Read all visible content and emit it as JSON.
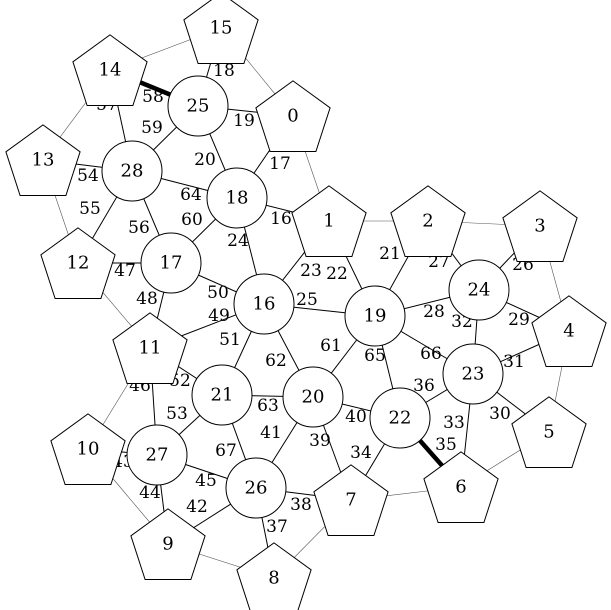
{
  "nodes": [
    {
      "id": "0",
      "label": "0",
      "shape": "pentagon"
    },
    {
      "id": "1",
      "label": "1",
      "shape": "pentagon"
    },
    {
      "id": "2",
      "label": "2",
      "shape": "pentagon"
    },
    {
      "id": "3",
      "label": "3",
      "shape": "pentagon"
    },
    {
      "id": "4",
      "label": "4",
      "shape": "pentagon"
    },
    {
      "id": "5",
      "label": "5",
      "shape": "pentagon"
    },
    {
      "id": "6",
      "label": "6",
      "shape": "pentagon"
    },
    {
      "id": "7",
      "label": "7",
      "shape": "pentagon"
    },
    {
      "id": "8",
      "label": "8",
      "shape": "pentagon"
    },
    {
      "id": "9",
      "label": "9",
      "shape": "pentagon"
    },
    {
      "id": "10",
      "label": "10",
      "shape": "pentagon"
    },
    {
      "id": "11",
      "label": "11",
      "shape": "pentagon"
    },
    {
      "id": "12",
      "label": "12",
      "shape": "pentagon"
    },
    {
      "id": "13",
      "label": "13",
      "shape": "pentagon"
    },
    {
      "id": "14",
      "label": "14",
      "shape": "pentagon"
    },
    {
      "id": "15",
      "label": "15",
      "shape": "pentagon"
    },
    {
      "id": "16",
      "label": "16",
      "shape": "circle"
    },
    {
      "id": "17",
      "label": "17",
      "shape": "circle"
    },
    {
      "id": "18",
      "label": "18",
      "shape": "circle"
    },
    {
      "id": "19",
      "label": "19",
      "shape": "circle"
    },
    {
      "id": "20",
      "label": "20",
      "shape": "circle"
    },
    {
      "id": "21",
      "label": "21",
      "shape": "circle"
    },
    {
      "id": "22",
      "label": "22",
      "shape": "circle"
    },
    {
      "id": "23",
      "label": "23",
      "shape": "circle"
    },
    {
      "id": "24",
      "label": "24",
      "shape": "circle"
    },
    {
      "id": "25",
      "label": "25",
      "shape": "circle"
    },
    {
      "id": "26",
      "label": "26",
      "shape": "circle"
    },
    {
      "id": "27",
      "label": "27",
      "shape": "circle"
    },
    {
      "id": "28",
      "label": "28",
      "shape": "circle"
    }
  ],
  "edges": [
    {
      "from": "25",
      "to": "0",
      "label": "19",
      "style": "normal"
    },
    {
      "from": "18",
      "to": "0",
      "label": "17",
      "style": "normal"
    },
    {
      "from": "18",
      "to": "1",
      "label": "16",
      "style": "normal"
    },
    {
      "from": "16",
      "to": "1",
      "label": "23",
      "style": "normal"
    },
    {
      "from": "19",
      "to": "1",
      "label": "22",
      "style": "normal"
    },
    {
      "from": "19",
      "to": "2",
      "label": "21",
      "style": "normal"
    },
    {
      "from": "24",
      "to": "2",
      "label": "27",
      "style": "normal"
    },
    {
      "from": "24",
      "to": "3",
      "label": "26",
      "style": "normal"
    },
    {
      "from": "24",
      "to": "4",
      "label": "29",
      "style": "normal"
    },
    {
      "from": "23",
      "to": "4",
      "label": "31",
      "style": "normal"
    },
    {
      "from": "23",
      "to": "5",
      "label": "30",
      "style": "normal"
    },
    {
      "from": "23",
      "to": "6",
      "label": "33",
      "style": "normal"
    },
    {
      "from": "22",
      "to": "6",
      "label": "35",
      "style": "bold"
    },
    {
      "from": "22",
      "to": "7",
      "label": "34",
      "style": "normal"
    },
    {
      "from": "20",
      "to": "7",
      "label": "39",
      "style": "normal"
    },
    {
      "from": "26",
      "to": "7",
      "label": "38",
      "style": "normal"
    },
    {
      "from": "26",
      "to": "8",
      "label": "37",
      "style": "normal"
    },
    {
      "from": "26",
      "to": "9",
      "label": "42",
      "style": "normal"
    },
    {
      "from": "27",
      "to": "9",
      "label": "44",
      "style": "normal"
    },
    {
      "from": "27",
      "to": "10",
      "label": "43",
      "style": "normal"
    },
    {
      "from": "27",
      "to": "11",
      "label": "46",
      "style": "normal"
    },
    {
      "from": "27",
      "to": "26",
      "label": "45",
      "style": "normal"
    },
    {
      "from": "27",
      "to": "21",
      "label": "53",
      "style": "normal"
    },
    {
      "from": "21",
      "to": "11",
      "label": "52",
      "style": "normal"
    },
    {
      "from": "21",
      "to": "16",
      "label": "51",
      "style": "normal"
    },
    {
      "from": "21",
      "to": "20",
      "label": "63",
      "style": "normal"
    },
    {
      "from": "21",
      "to": "26",
      "label": "67",
      "style": "normal"
    },
    {
      "from": "20",
      "to": "26",
      "label": "41",
      "style": "normal"
    },
    {
      "from": "20",
      "to": "16",
      "label": "62",
      "style": "normal"
    },
    {
      "from": "20",
      "to": "19",
      "label": "61",
      "style": "normal"
    },
    {
      "from": "20",
      "to": "22",
      "label": "40",
      "style": "normal"
    },
    {
      "from": "22",
      "to": "19",
      "label": "65",
      "style": "normal"
    },
    {
      "from": "22",
      "to": "23",
      "label": "36",
      "style": "normal"
    },
    {
      "from": "23",
      "to": "19",
      "label": "66",
      "style": "normal"
    },
    {
      "from": "23",
      "to": "24",
      "label": "32",
      "style": "normal"
    },
    {
      "from": "24",
      "to": "19",
      "label": "28",
      "style": "normal"
    },
    {
      "from": "19",
      "to": "16",
      "label": "25",
      "style": "normal"
    },
    {
      "from": "16",
      "to": "11",
      "label": "49",
      "style": "normal"
    },
    {
      "from": "16",
      "to": "17",
      "label": "50",
      "style": "normal"
    },
    {
      "from": "16",
      "to": "18",
      "label": "24",
      "style": "normal"
    },
    {
      "from": "17",
      "to": "11",
      "label": "48",
      "style": "normal"
    },
    {
      "from": "17",
      "to": "12",
      "label": "47",
      "style": "normal"
    },
    {
      "from": "17",
      "to": "28",
      "label": "56",
      "style": "normal"
    },
    {
      "from": "17",
      "to": "18",
      "label": "60",
      "style": "normal"
    },
    {
      "from": "18",
      "to": "28",
      "label": "64",
      "style": "normal"
    },
    {
      "from": "18",
      "to": "25",
      "label": "20",
      "style": "normal"
    },
    {
      "from": "28",
      "to": "25",
      "label": "59",
      "style": "normal"
    },
    {
      "from": "28",
      "to": "14",
      "label": "57",
      "style": "normal"
    },
    {
      "from": "28",
      "to": "13",
      "label": "54",
      "style": "normal"
    },
    {
      "from": "28",
      "to": "12",
      "label": "55",
      "style": "normal"
    },
    {
      "from": "25",
      "to": "14",
      "label": "58",
      "style": "bold"
    },
    {
      "from": "25",
      "to": "15",
      "label": "18",
      "style": "normal"
    },
    {
      "from": "14",
      "to": "15",
      "label": "",
      "style": "thin"
    },
    {
      "from": "15",
      "to": "0",
      "label": "",
      "style": "thin"
    },
    {
      "from": "0",
      "to": "1",
      "label": "",
      "style": "thin"
    },
    {
      "from": "1",
      "to": "2",
      "label": "",
      "style": "thin"
    },
    {
      "from": "2",
      "to": "3",
      "label": "",
      "style": "thin"
    },
    {
      "from": "3",
      "to": "4",
      "label": "",
      "style": "thin"
    },
    {
      "from": "4",
      "to": "5",
      "label": "",
      "style": "thin"
    },
    {
      "from": "5",
      "to": "6",
      "label": "",
      "style": "thin"
    },
    {
      "from": "6",
      "to": "7",
      "label": "",
      "style": "thin"
    },
    {
      "from": "7",
      "to": "8",
      "label": "",
      "style": "thin"
    },
    {
      "from": "8",
      "to": "9",
      "label": "",
      "style": "thin"
    },
    {
      "from": "9",
      "to": "10",
      "label": "",
      "style": "thin"
    },
    {
      "from": "10",
      "to": "11",
      "label": "",
      "style": "thin"
    },
    {
      "from": "11",
      "to": "12",
      "label": "",
      "style": "thin"
    },
    {
      "from": "12",
      "to": "13",
      "label": "",
      "style": "thin"
    },
    {
      "from": "13",
      "to": "14",
      "label": "",
      "style": "thin"
    }
  ]
}
